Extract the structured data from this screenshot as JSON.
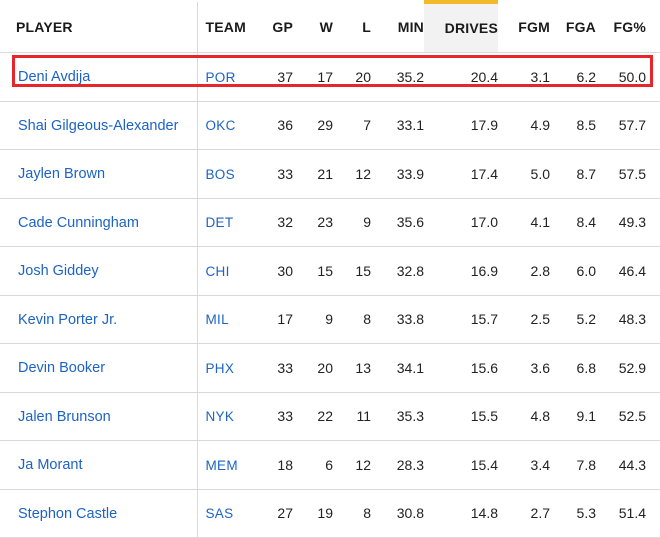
{
  "columns": [
    "PLAYER",
    "TEAM",
    "GP",
    "W",
    "L",
    "MIN",
    "DRIVES",
    "FGM",
    "FGA",
    "FG%"
  ],
  "sorted_column": "DRIVES",
  "colors": {
    "link": "#1d63c4",
    "sort_accent": "#f2b929",
    "sorted_bg": "#f2f2f2",
    "highlight": "#e8252a"
  },
  "rows": [
    {
      "player": "Deni Avdija",
      "team": "POR",
      "gp": "37",
      "w": "17",
      "l": "20",
      "min": "35.2",
      "drives": "20.4",
      "fgm": "3.1",
      "fga": "6.2",
      "fgp": "50.0"
    },
    {
      "player": "Shai Gilgeous-Alexander",
      "team": "OKC",
      "gp": "36",
      "w": "29",
      "l": "7",
      "min": "33.1",
      "drives": "17.9",
      "fgm": "4.9",
      "fga": "8.5",
      "fgp": "57.7"
    },
    {
      "player": "Jaylen Brown",
      "team": "BOS",
      "gp": "33",
      "w": "21",
      "l": "12",
      "min": "33.9",
      "drives": "17.4",
      "fgm": "5.0",
      "fga": "8.7",
      "fgp": "57.5"
    },
    {
      "player": "Cade Cunningham",
      "team": "DET",
      "gp": "32",
      "w": "23",
      "l": "9",
      "min": "35.6",
      "drives": "17.0",
      "fgm": "4.1",
      "fga": "8.4",
      "fgp": "49.3"
    },
    {
      "player": "Josh Giddey",
      "team": "CHI",
      "gp": "30",
      "w": "15",
      "l": "15",
      "min": "32.8",
      "drives": "16.9",
      "fgm": "2.8",
      "fga": "6.0",
      "fgp": "46.4"
    },
    {
      "player": "Kevin Porter Jr.",
      "team": "MIL",
      "gp": "17",
      "w": "9",
      "l": "8",
      "min": "33.8",
      "drives": "15.7",
      "fgm": "2.5",
      "fga": "5.2",
      "fgp": "48.3"
    },
    {
      "player": "Devin Booker",
      "team": "PHX",
      "gp": "33",
      "w": "20",
      "l": "13",
      "min": "34.1",
      "drives": "15.6",
      "fgm": "3.6",
      "fga": "6.8",
      "fgp": "52.9"
    },
    {
      "player": "Jalen Brunson",
      "team": "NYK",
      "gp": "33",
      "w": "22",
      "l": "11",
      "min": "35.3",
      "drives": "15.5",
      "fgm": "4.8",
      "fga": "9.1",
      "fgp": "52.5"
    },
    {
      "player": "Ja Morant",
      "team": "MEM",
      "gp": "18",
      "w": "6",
      "l": "12",
      "min": "28.3",
      "drives": "15.4",
      "fgm": "3.4",
      "fga": "7.8",
      "fgp": "44.3"
    },
    {
      "player": "Stephon Castle",
      "team": "SAS",
      "gp": "27",
      "w": "19",
      "l": "8",
      "min": "30.8",
      "drives": "14.8",
      "fgm": "2.7",
      "fga": "5.3",
      "fgp": "51.4"
    }
  ]
}
